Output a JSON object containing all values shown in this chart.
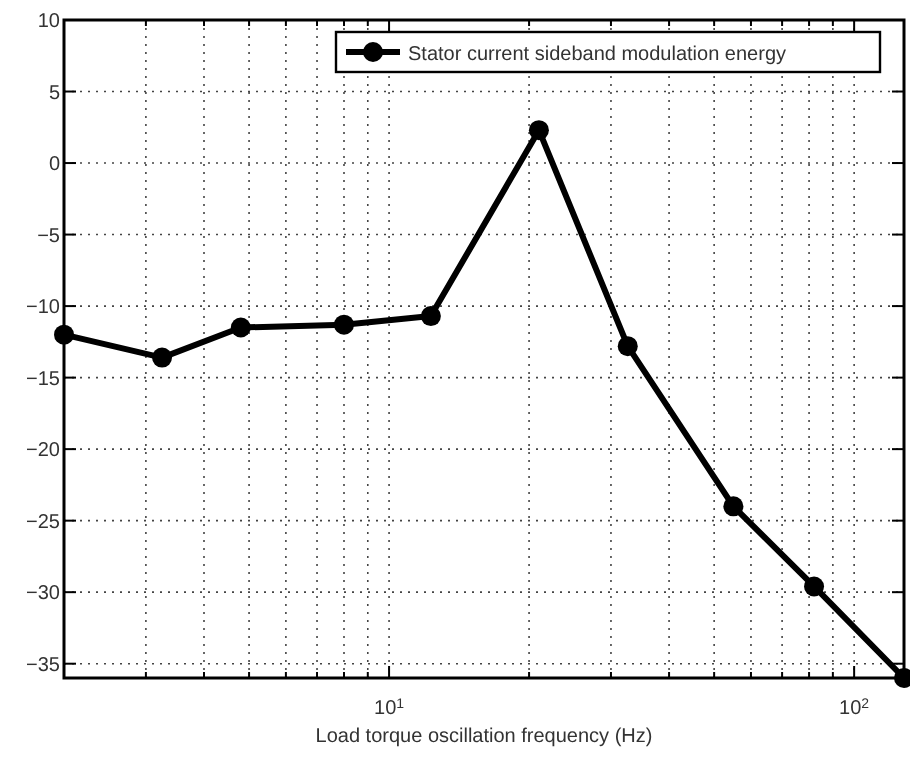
{
  "chart_data": {
    "type": "line",
    "xlabel": "Load torque oscillation frequency (Hz)",
    "log": "x",
    "x": [
      2,
      3.25,
      4.8,
      8,
      12.3,
      21,
      32.6,
      55,
      82,
      128
    ],
    "series": [
      {
        "name": "Stator current sideband modulation energy",
        "color": "#000000",
        "values": [
          -12,
          -13.6,
          -11.5,
          -11.3,
          -10.7,
          2.3,
          -12.8,
          -24,
          -29.6,
          -36
        ]
      }
    ],
    "xlim": [
      2,
      128
    ],
    "ylim": [
      -36,
      10
    ],
    "xticks": [
      {
        "value": 2,
        "label": null
      },
      {
        "value": 3,
        "label": null
      },
      {
        "value": 4,
        "label": null
      },
      {
        "value": 5,
        "label": null
      },
      {
        "value": 6,
        "label": null
      },
      {
        "value": 7,
        "label": null
      },
      {
        "value": 8,
        "label": null
      },
      {
        "value": 9,
        "label": null
      },
      {
        "value": 10,
        "label": "10$^{1}$"
      },
      {
        "value": 20,
        "label": null
      },
      {
        "value": 30,
        "label": null
      },
      {
        "value": 40,
        "label": null
      },
      {
        "value": 50,
        "label": null
      },
      {
        "value": 60,
        "label": null
      },
      {
        "value": 70,
        "label": null
      },
      {
        "value": 80,
        "label": null
      },
      {
        "value": 90,
        "label": null
      },
      {
        "value": 100,
        "label": "10$^{2}$"
      }
    ],
    "yticks": [
      {
        "value": 10,
        "label": "10"
      },
      {
        "value": 5,
        "label": "5"
      },
      {
        "value": 0,
        "label": "0"
      },
      {
        "value": -5,
        "label": "−5"
      },
      {
        "value": -10,
        "label": "−10"
      },
      {
        "value": -15,
        "label": "−15"
      },
      {
        "value": -20,
        "label": "−20"
      },
      {
        "value": -25,
        "label": "−25"
      },
      {
        "value": -30,
        "label": "−30"
      },
      {
        "value": -35,
        "label": "−35"
      }
    ],
    "grid": true,
    "legend": "top right",
    "marker": "circle",
    "line_style": "solid"
  }
}
